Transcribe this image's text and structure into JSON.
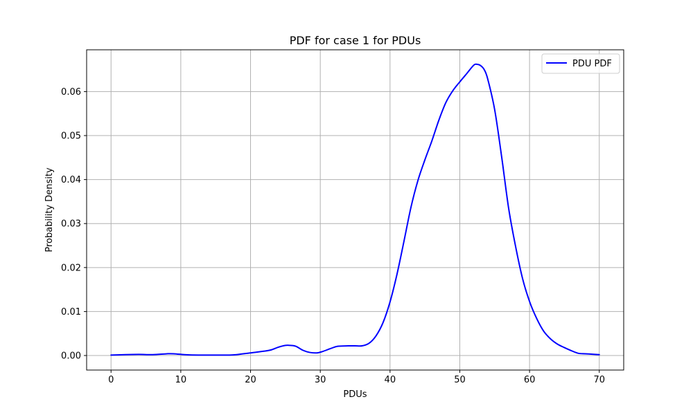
{
  "chart_data": {
    "type": "line",
    "title": "PDF for case 1 for PDUs",
    "xlabel": "PDUs",
    "ylabel": "Probability Density",
    "xlim": [
      -3.5,
      73.5
    ],
    "ylim": [
      -0.0033,
      0.0695
    ],
    "xticks": [
      0,
      10,
      20,
      30,
      40,
      50,
      60,
      70
    ],
    "xtick_labels": [
      "0",
      "10",
      "20",
      "30",
      "40",
      "50",
      "60",
      "70"
    ],
    "yticks": [
      0.0,
      0.01,
      0.02,
      0.03,
      0.04,
      0.05,
      0.06
    ],
    "ytick_labels": [
      "0.00",
      "0.01",
      "0.02",
      "0.03",
      "0.04",
      "0.05",
      "0.06"
    ],
    "grid": true,
    "legend_position": "top-right",
    "series": [
      {
        "name": "PDU PDF",
        "color": "#0000ff",
        "x": [
          0,
          2,
          4,
          6,
          8,
          9,
          11,
          13,
          15,
          17,
          18,
          20,
          22,
          23,
          24,
          25,
          25.7,
          26.5,
          27.5,
          28.5,
          29.5,
          30.3,
          31.5,
          32.5,
          34,
          35,
          36,
          37,
          38,
          39,
          40,
          41,
          42,
          43,
          44,
          45,
          46,
          47,
          48,
          49,
          50,
          51,
          52,
          52.5,
          53,
          53.5,
          54,
          55,
          56,
          57,
          58,
          59,
          60,
          61,
          62,
          63,
          64,
          65,
          66,
          67,
          68,
          69,
          70
        ],
        "y": [
          0.0001,
          0.0002,
          0.00025,
          0.0002,
          0.0004,
          0.0004,
          0.00015,
          0.0001,
          0.0001,
          0.0001,
          0.0002,
          0.0006,
          0.001,
          0.0013,
          0.0019,
          0.0023,
          0.0023,
          0.0021,
          0.0012,
          0.0007,
          0.0006,
          0.0009,
          0.0016,
          0.0021,
          0.0022,
          0.0022,
          0.0022,
          0.0028,
          0.0045,
          0.0075,
          0.0122,
          0.0185,
          0.026,
          0.0337,
          0.0398,
          0.0445,
          0.0488,
          0.0535,
          0.0575,
          0.0602,
          0.0622,
          0.0641,
          0.066,
          0.0662,
          0.0659,
          0.065,
          0.0629,
          0.0559,
          0.0452,
          0.0335,
          0.0248,
          0.0175,
          0.0123,
          0.0085,
          0.0056,
          0.0038,
          0.0026,
          0.0018,
          0.0011,
          0.0005,
          0.0004,
          0.0003,
          0.0002
        ]
      }
    ]
  }
}
